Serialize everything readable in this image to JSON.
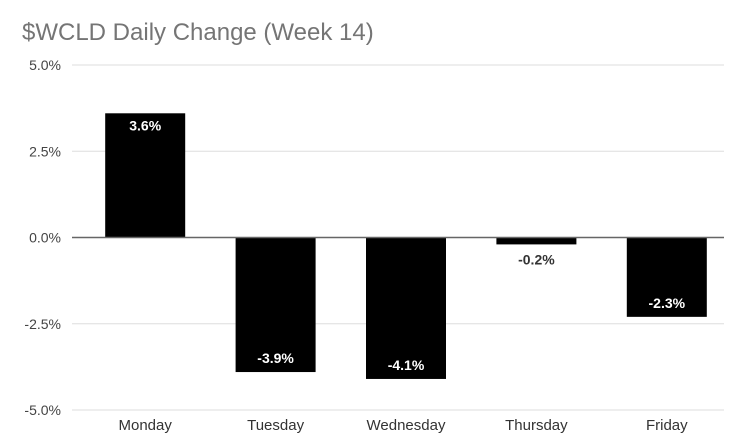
{
  "chart_data": {
    "type": "bar",
    "title": "$WCLD Daily Change (Week 14)",
    "categories": [
      "Monday",
      "Tuesday",
      "Wednesday",
      "Thursday",
      "Friday"
    ],
    "values": [
      3.6,
      -3.9,
      -4.1,
      -0.2,
      -2.3
    ],
    "data_labels": [
      "3.6%",
      "-3.9%",
      "-4.1%",
      "-0.2%",
      "-2.3%"
    ],
    "ylim": [
      -5.0,
      5.0
    ],
    "yticks": [
      5.0,
      2.5,
      0.0,
      -2.5,
      -5.0
    ],
    "ytick_labels": [
      "5.0%",
      "2.5%",
      "0.0%",
      "-2.5%",
      "-5.0%"
    ],
    "grid": true,
    "legend": "none",
    "colors": {
      "bar": "#000000",
      "grid": "#dddddd",
      "zero_line": "#666666"
    }
  }
}
